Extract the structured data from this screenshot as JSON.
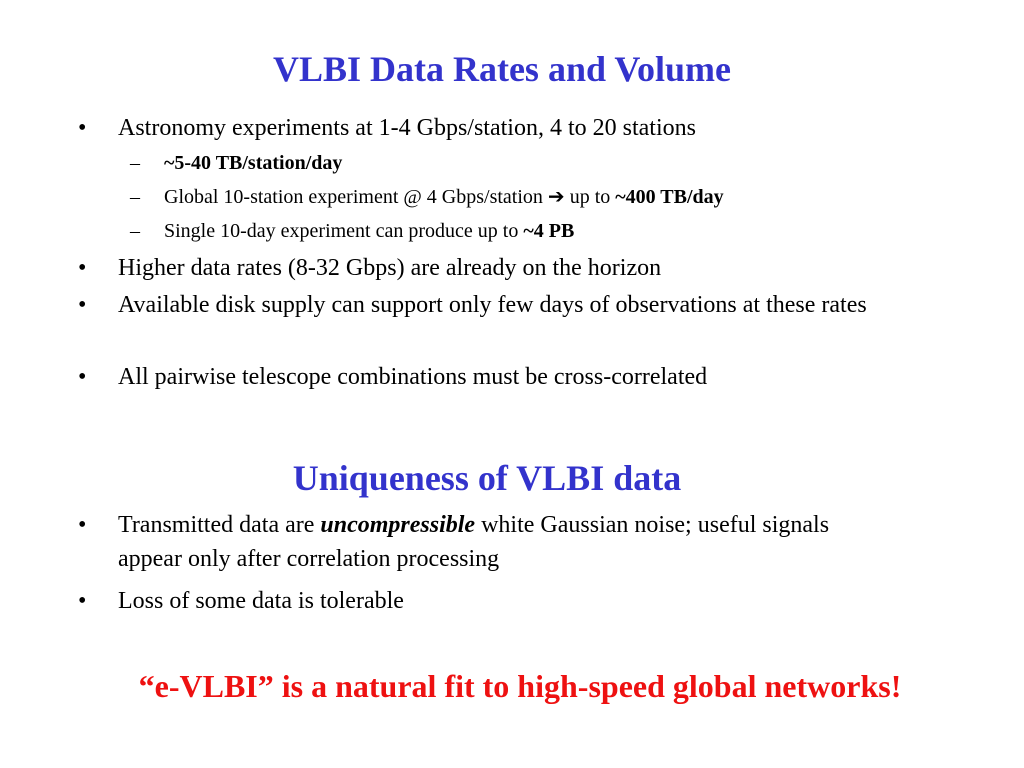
{
  "section1": {
    "title": "VLBI Data Rates and Volume",
    "bullet_marker": "•",
    "sub_marker": "–",
    "b1": "Astronomy experiments at 1-4 Gbps/station, 4 to 20 stations",
    "s1": "~5-40 TB/station/day",
    "s2_text": "Global 10-station experiment @ 4 Gbps/station ",
    "s2_arrow": "➔",
    "s2_mid": " up to ",
    "s2_bold": "~400 TB/day",
    "s3_text": "Single 10-day experiment can produce up to ",
    "s3_bold": "~4 PB",
    "b2": "Higher data rates (8-32 Gbps) are already on the horizon",
    "b3": "Available disk supply can support only few days of observations at these rates",
    "b4": "All pairwise telescope combinations must be cross-correlated"
  },
  "section2": {
    "title": "Uniqueness of VLBI data",
    "b1_pre": "Transmitted data are ",
    "b1_em": "uncompressible",
    "b1_post": " white Gaussian noise; useful signals appear only after correlation processing",
    "b2": "Loss of some data is tolerable"
  },
  "footer": "“e-VLBI” is a natural fit to high-speed global networks!",
  "colors": {
    "title": "#3333cc",
    "footer": "#ee1111",
    "text": "#000000"
  }
}
